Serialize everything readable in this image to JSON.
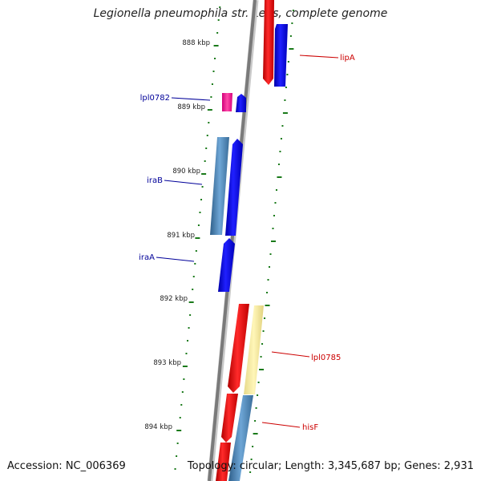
{
  "title": "Legionella pneumophila str. Lens, complete genome",
  "footer": {
    "accession": "Accession: NC_006369",
    "summary": "Topology: circular; Length: 3,345,687 bp; Genes: 2,931"
  },
  "colors": {
    "backbone": "#7a7a7a",
    "ticks": "#1a7a1a",
    "red_gene": "#ff0000",
    "blue_gene": "#0000ff",
    "steel_gene": "#4682b4",
    "pink_gene": "#ff1493",
    "yellow_gene": "#f0e68c",
    "label_red": "#cc0000",
    "label_blue": "#000099"
  },
  "kbp_labels": [
    "888 kbp",
    "889 kbp",
    "890 kbp",
    "891 kbp",
    "892 kbp",
    "893 kbp",
    "894 kbp"
  ],
  "gene_labels": {
    "lipA": "lipA",
    "lpl0782": "lpl0782",
    "iraB": "iraB",
    "iraA": "iraA",
    "lpl0785": "lpl0785",
    "hisF": "hisF"
  }
}
